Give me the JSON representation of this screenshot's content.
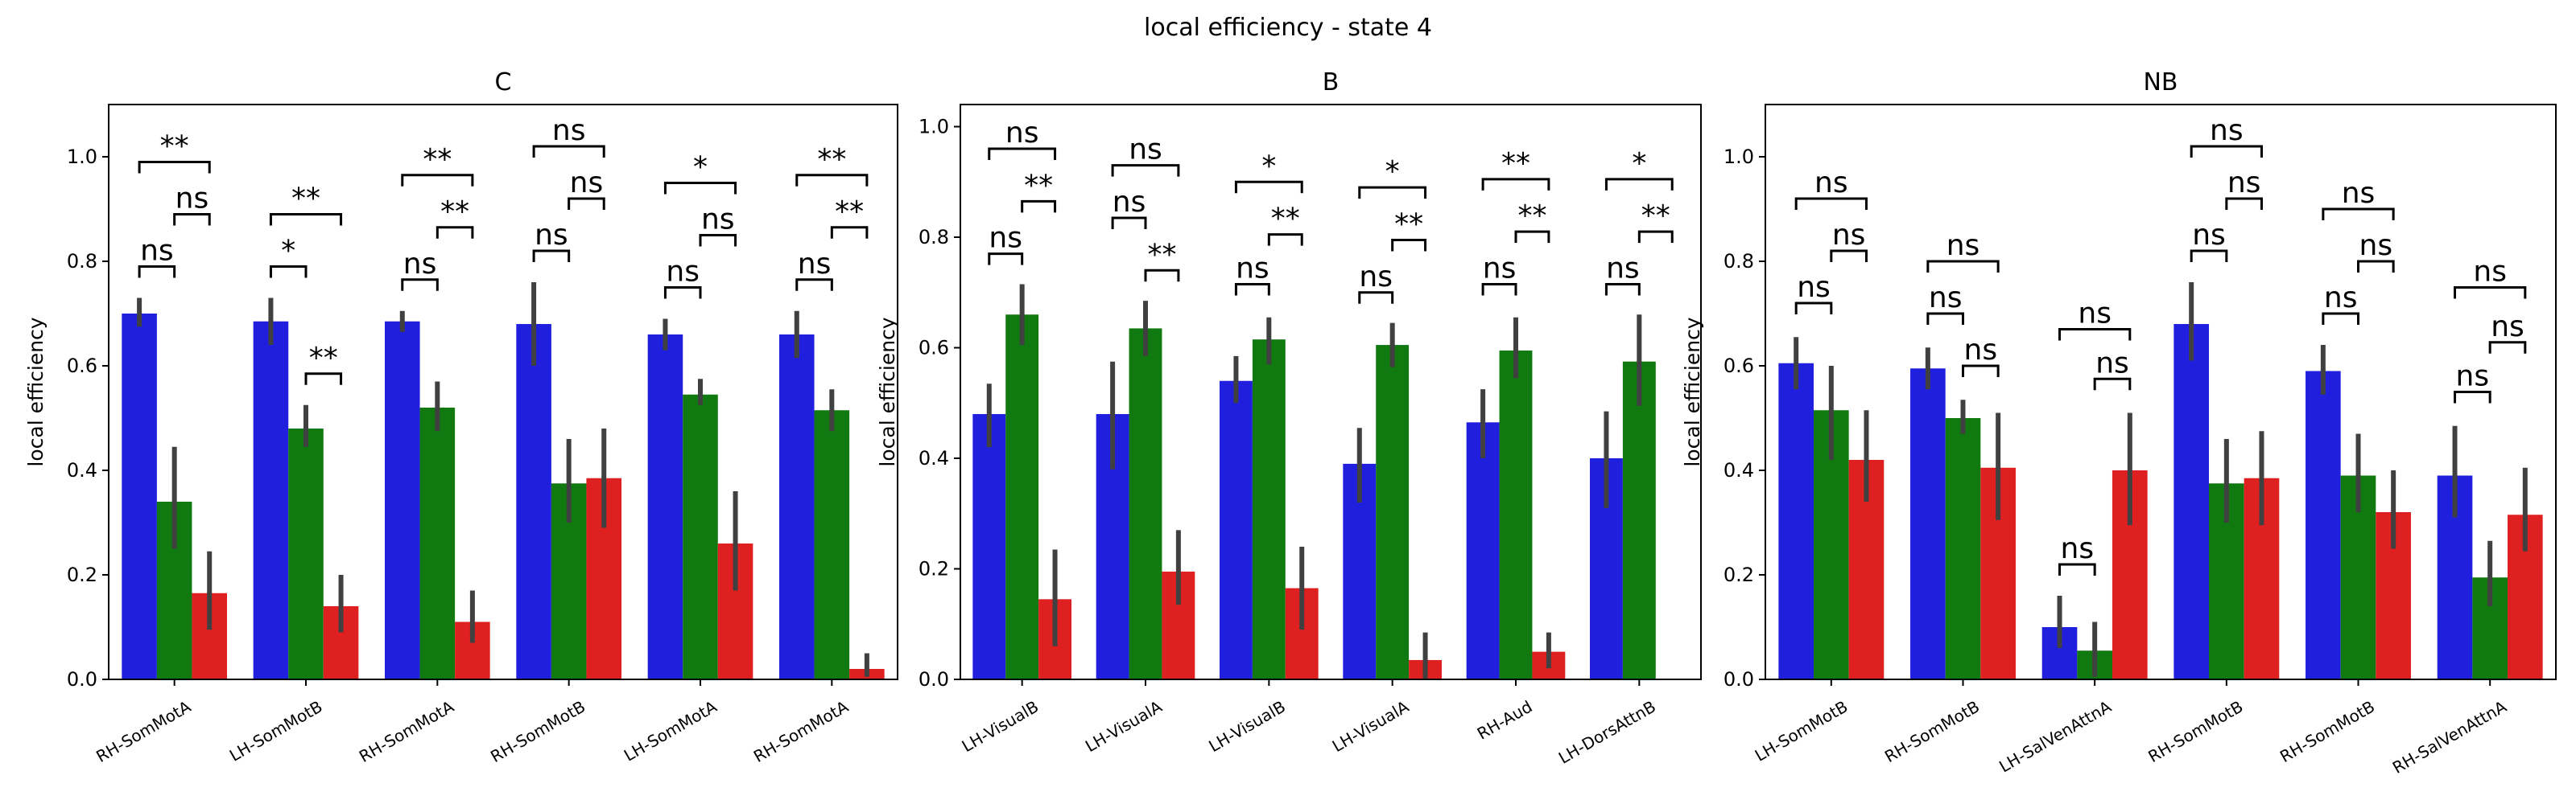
{
  "figure": {
    "suptitle": "local efficiency - state 4",
    "colors": {
      "c1": "#1f1fdd",
      "c2": "#107a10",
      "c3": "#df2020",
      "err": "#404040"
    }
  },
  "chart_data": [
    {
      "type": "bar",
      "title": "C",
      "ylabel": "local efficiency",
      "ylim": [
        0,
        1.1
      ],
      "yticks": [
        "0.0",
        "0.2",
        "0.4",
        "0.6",
        "0.8",
        "1.0"
      ],
      "categories": [
        "RH-SomMotA",
        "LH-SomMotB",
        "RH-SomMotA",
        "RH-SomMotB",
        "LH-SomMotA",
        "RH-SomMotA"
      ],
      "series": [
        {
          "color": "#1f1fdd",
          "values": [
            0.7,
            0.685,
            0.685,
            0.68,
            0.66,
            0.66
          ],
          "err": [
            [
              0.675,
              0.73
            ],
            [
              0.64,
              0.73
            ],
            [
              0.665,
              0.705
            ],
            [
              0.6,
              0.76
            ],
            [
              0.63,
              0.69
            ],
            [
              0.615,
              0.705
            ]
          ]
        },
        {
          "color": "#107a10",
          "values": [
            0.34,
            0.48,
            0.52,
            0.375,
            0.545,
            0.515
          ],
          "err": [
            [
              0.25,
              0.445
            ],
            [
              0.445,
              0.525
            ],
            [
              0.475,
              0.57
            ],
            [
              0.3,
              0.46
            ],
            [
              0.525,
              0.575
            ],
            [
              0.475,
              0.555
            ]
          ]
        },
        {
          "color": "#df2020",
          "values": [
            0.165,
            0.14,
            0.11,
            0.385,
            0.26,
            0.02
          ],
          "err": [
            [
              0.095,
              0.245
            ],
            [
              0.09,
              0.2
            ],
            [
              0.07,
              0.17
            ],
            [
              0.29,
              0.48
            ],
            [
              0.17,
              0.36
            ],
            [
              0.005,
              0.05
            ]
          ]
        }
      ],
      "annotations": [
        [
          {
            "pair": "1-2",
            "label": "ns",
            "y": 0.79
          },
          {
            "pair": "2-3",
            "label": "ns",
            "y": 0.89
          },
          {
            "pair": "1-3",
            "label": "**",
            "y": 0.99
          }
        ],
        [
          {
            "pair": "1-2",
            "label": "*",
            "y": 0.79
          },
          {
            "pair": "2-3",
            "label": "**",
            "y": 0.585
          },
          {
            "pair": "1-3",
            "label": "**",
            "y": 0.89
          }
        ],
        [
          {
            "pair": "1-2",
            "label": "ns",
            "y": 0.765
          },
          {
            "pair": "2-3",
            "label": "**",
            "y": 0.865
          },
          {
            "pair": "1-3",
            "label": "**",
            "y": 0.965
          }
        ],
        [
          {
            "pair": "1-2",
            "label": "ns",
            "y": 0.82
          },
          {
            "pair": "2-3",
            "label": "ns",
            "y": 0.92
          },
          {
            "pair": "1-3",
            "label": "ns",
            "y": 1.02
          }
        ],
        [
          {
            "pair": "1-2",
            "label": "ns",
            "y": 0.75
          },
          {
            "pair": "2-3",
            "label": "ns",
            "y": 0.85
          },
          {
            "pair": "1-3",
            "label": "*",
            "y": 0.95
          }
        ],
        [
          {
            "pair": "1-2",
            "label": "ns",
            "y": 0.765
          },
          {
            "pair": "2-3",
            "label": "**",
            "y": 0.865
          },
          {
            "pair": "1-3",
            "label": "**",
            "y": 0.965
          }
        ]
      ]
    },
    {
      "type": "bar",
      "title": "B",
      "ylabel": "local efficiency",
      "ylim": [
        0,
        1.04
      ],
      "yticks": [
        "0.0",
        "0.2",
        "0.4",
        "0.6",
        "0.8",
        "1.0"
      ],
      "categories": [
        "LH-VisualB",
        "LH-VisualA",
        "LH-VisualB",
        "LH-VisualA",
        "RH-Aud",
        "LH-DorsAttnB"
      ],
      "series": [
        {
          "color": "#1f1fdd",
          "values": [
            0.48,
            0.48,
            0.54,
            0.39,
            0.465,
            0.4
          ],
          "err": [
            [
              0.42,
              0.535
            ],
            [
              0.38,
              0.575
            ],
            [
              0.5,
              0.585
            ],
            [
              0.32,
              0.455
            ],
            [
              0.4,
              0.525
            ],
            [
              0.31,
              0.485
            ]
          ]
        },
        {
          "color": "#107a10",
          "values": [
            0.66,
            0.635,
            0.615,
            0.605,
            0.595,
            0.575
          ],
          "err": [
            [
              0.605,
              0.715
            ],
            [
              0.585,
              0.685
            ],
            [
              0.57,
              0.655
            ],
            [
              0.565,
              0.645
            ],
            [
              0.545,
              0.655
            ],
            [
              0.495,
              0.66
            ]
          ]
        },
        {
          "color": "#df2020",
          "values": [
            0.145,
            0.195,
            0.165,
            0.035,
            0.05,
            0.0
          ],
          "err": [
            [
              0.06,
              0.235
            ],
            [
              0.135,
              0.27
            ],
            [
              0.09,
              0.24
            ],
            [
              0.0,
              0.085
            ],
            [
              0.02,
              0.085
            ],
            [
              0,
              0
            ]
          ]
        }
      ],
      "annotations": [
        [
          {
            "pair": "1-2",
            "label": "ns",
            "y": 0.77
          },
          {
            "pair": "2-3",
            "label": "**",
            "y": 0.865
          },
          {
            "pair": "1-3",
            "label": "ns",
            "y": 0.96
          }
        ],
        [
          {
            "pair": "1-2",
            "label": "ns",
            "y": 0.835
          },
          {
            "pair": "2-3",
            "label": "**",
            "y": 0.74
          },
          {
            "pair": "1-3",
            "label": "ns",
            "y": 0.93
          }
        ],
        [
          {
            "pair": "1-2",
            "label": "ns",
            "y": 0.715
          },
          {
            "pair": "2-3",
            "label": "**",
            "y": 0.805
          },
          {
            "pair": "1-3",
            "label": "*",
            "y": 0.9
          }
        ],
        [
          {
            "pair": "1-2",
            "label": "ns",
            "y": 0.7
          },
          {
            "pair": "2-3",
            "label": "**",
            "y": 0.795
          },
          {
            "pair": "1-3",
            "label": "*",
            "y": 0.89
          }
        ],
        [
          {
            "pair": "1-2",
            "label": "ns",
            "y": 0.715
          },
          {
            "pair": "2-3",
            "label": "**",
            "y": 0.81
          },
          {
            "pair": "1-3",
            "label": "**",
            "y": 0.905
          }
        ],
        [
          {
            "pair": "1-2",
            "label": "ns",
            "y": 0.715
          },
          {
            "pair": "2-3",
            "label": "**",
            "y": 0.81
          },
          {
            "pair": "1-3",
            "label": "*",
            "y": 0.905
          }
        ]
      ]
    },
    {
      "type": "bar",
      "title": "NB",
      "ylabel": "local efficiency",
      "ylim": [
        0,
        1.1
      ],
      "yticks": [
        "0.0",
        "0.2",
        "0.4",
        "0.6",
        "0.8",
        "1.0"
      ],
      "categories": [
        "LH-SomMotB",
        "RH-SomMotB",
        "LH-SalVenAttnA",
        "RH-SomMotB",
        "RH-SomMotB",
        "RH-SalVenAttnA"
      ],
      "series": [
        {
          "color": "#1f1fdd",
          "values": [
            0.605,
            0.595,
            0.1,
            0.68,
            0.59,
            0.39
          ],
          "err": [
            [
              0.555,
              0.655
            ],
            [
              0.555,
              0.635
            ],
            [
              0.06,
              0.16
            ],
            [
              0.61,
              0.76
            ],
            [
              0.545,
              0.64
            ],
            [
              0.31,
              0.485
            ]
          ]
        },
        {
          "color": "#107a10",
          "values": [
            0.515,
            0.5,
            0.055,
            0.375,
            0.39,
            0.195
          ],
          "err": [
            [
              0.42,
              0.6
            ],
            [
              0.47,
              0.535
            ],
            [
              0.005,
              0.11
            ],
            [
              0.3,
              0.46
            ],
            [
              0.32,
              0.47
            ],
            [
              0.14,
              0.265
            ]
          ]
        },
        {
          "color": "#df2020",
          "values": [
            0.42,
            0.405,
            0.4,
            0.385,
            0.32,
            0.315
          ],
          "err": [
            [
              0.34,
              0.515
            ],
            [
              0.305,
              0.51
            ],
            [
              0.295,
              0.51
            ],
            [
              0.295,
              0.475
            ],
            [
              0.25,
              0.4
            ],
            [
              0.245,
              0.405
            ]
          ]
        }
      ],
      "annotations": [
        [
          {
            "pair": "1-2",
            "label": "ns",
            "y": 0.72
          },
          {
            "pair": "2-3",
            "label": "ns",
            "y": 0.82
          },
          {
            "pair": "1-3",
            "label": "ns",
            "y": 0.92
          }
        ],
        [
          {
            "pair": "1-2",
            "label": "ns",
            "y": 0.7
          },
          {
            "pair": "2-3",
            "label": "ns",
            "y": 0.6
          },
          {
            "pair": "1-3",
            "label": "ns",
            "y": 0.8
          }
        ],
        [
          {
            "pair": "1-2",
            "label": "ns",
            "y": 0.22
          },
          {
            "pair": "2-3",
            "label": "ns",
            "y": 0.575
          },
          {
            "pair": "1-3",
            "label": "ns",
            "y": 0.67
          }
        ],
        [
          {
            "pair": "1-2",
            "label": "ns",
            "y": 0.82
          },
          {
            "pair": "2-3",
            "label": "ns",
            "y": 0.92
          },
          {
            "pair": "1-3",
            "label": "ns",
            "y": 1.02
          }
        ],
        [
          {
            "pair": "1-2",
            "label": "ns",
            "y": 0.7
          },
          {
            "pair": "2-3",
            "label": "ns",
            "y": 0.8
          },
          {
            "pair": "1-3",
            "label": "ns",
            "y": 0.9
          }
        ],
        [
          {
            "pair": "1-2",
            "label": "ns",
            "y": 0.55
          },
          {
            "pair": "2-3",
            "label": "ns",
            "y": 0.645
          },
          {
            "pair": "1-3",
            "label": "ns",
            "y": 0.75
          }
        ]
      ]
    }
  ]
}
